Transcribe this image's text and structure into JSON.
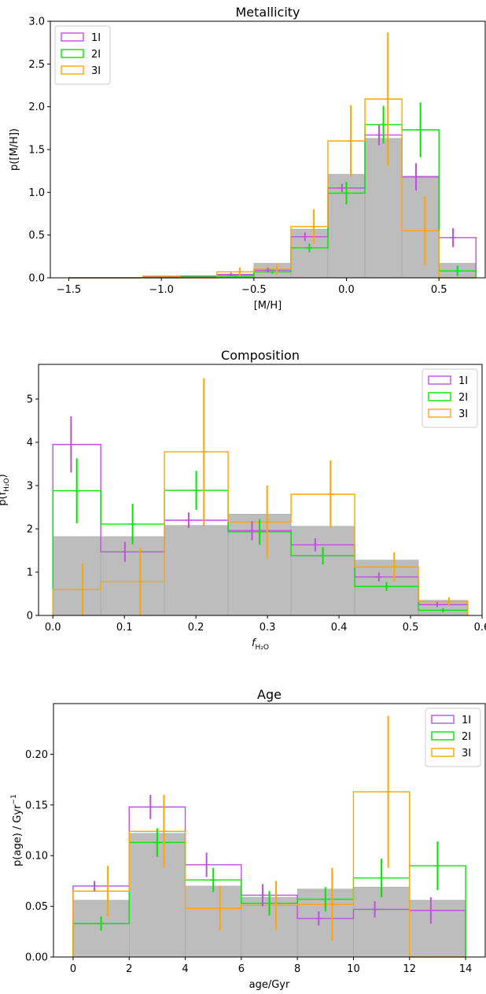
{
  "chart_data": [
    {
      "type": "histogram",
      "title": "Metallicity",
      "xlabel": "[M/H]",
      "ylabel": "p([M/H])",
      "xlim": [
        -1.6,
        0.75
      ],
      "ylim": [
        0,
        3.0
      ],
      "xticks": [
        -1.5,
        -1.0,
        -0.5,
        0.0,
        0.5
      ],
      "xtick_labels": [
        "−1.5",
        "−1.0",
        "−0.5",
        "0.0",
        "0.5"
      ],
      "yticks": [
        0.0,
        0.5,
        1.0,
        1.5,
        2.0,
        2.5,
        3.0
      ],
      "ytick_labels": [
        "0.0",
        "0.5",
        "1.0",
        "1.5",
        "2.0",
        "2.5",
        "3.0"
      ],
      "legend_position": "top-left",
      "bin_edges": [
        -1.5,
        -1.3,
        -1.1,
        -0.9,
        -0.7,
        -0.5,
        -0.3,
        -0.1,
        0.1,
        0.3,
        0.5,
        0.7
      ],
      "background": {
        "color": "#bdbdbd",
        "values": [
          0.0,
          0.0,
          0.01,
          0.01,
          0.03,
          0.17,
          0.57,
          1.21,
          1.63,
          1.19,
          0.17
        ]
      },
      "series": [
        {
          "name": "1I",
          "color": "#bf4fe0",
          "values": [
            0.0,
            0.0,
            0.01,
            0.02,
            0.04,
            0.09,
            0.48,
            1.05,
            1.67,
            1.18,
            0.47
          ],
          "err_low": [
            0,
            0,
            0,
            0,
            0.02,
            0.03,
            0.05,
            0.05,
            0.12,
            0.16,
            0.11
          ],
          "err_high": [
            0,
            0,
            0,
            0,
            0.02,
            0.03,
            0.05,
            0.05,
            0.12,
            0.16,
            0.11
          ]
        },
        {
          "name": "2I",
          "color": "#00e600",
          "values": [
            0.0,
            0.0,
            0.0,
            0.01,
            0.02,
            0.07,
            0.35,
            0.99,
            1.79,
            1.73,
            0.08
          ],
          "err_low": [
            0,
            0,
            0,
            0,
            0.01,
            0.02,
            0.05,
            0.13,
            0.22,
            0.32,
            0.06
          ],
          "err_high": [
            0,
            0,
            0,
            0,
            0.01,
            0.02,
            0.05,
            0.13,
            0.22,
            0.32,
            0.06
          ]
        },
        {
          "name": "3I",
          "color": "#ffa500",
          "values": [
            0.0,
            0.0,
            0.02,
            0.0,
            0.07,
            0.1,
            0.6,
            1.6,
            2.09,
            0.55,
            0.0
          ],
          "err_low": [
            0,
            0,
            0.01,
            0,
            0.05,
            0.06,
            0.2,
            0.42,
            0.78,
            0.4,
            0
          ],
          "err_high": [
            0,
            0,
            0.01,
            0,
            0.05,
            0.06,
            0.2,
            0.42,
            0.78,
            0.4,
            0
          ]
        }
      ]
    },
    {
      "type": "histogram",
      "title": "Composition",
      "xlabel": "f",
      "xlabel_sub": "H₂O",
      "ylabel": "p(f",
      "ylabel_sub": "H₂O",
      "ylabel_end": ")",
      "xlim": [
        -0.02,
        0.6
      ],
      "ylim": [
        0,
        5.8
      ],
      "xticks": [
        0.0,
        0.1,
        0.2,
        0.3,
        0.4,
        0.5,
        0.6
      ],
      "xtick_labels": [
        "0.0",
        "0.1",
        "0.2",
        "0.3",
        "0.4",
        "0.5",
        "0.6"
      ],
      "yticks": [
        0,
        1,
        2,
        3,
        4,
        5
      ],
      "ytick_labels": [
        "0",
        "1",
        "2",
        "3",
        "4",
        "5"
      ],
      "legend_position": "top-right",
      "bin_edges": [
        0.0,
        0.067,
        0.156,
        0.245,
        0.333,
        0.422,
        0.511,
        0.58
      ],
      "background": {
        "color": "#bdbdbd",
        "values": [
          1.82,
          1.82,
          2.08,
          2.34,
          2.06,
          1.28,
          0.35
        ]
      },
      "series": [
        {
          "name": "1I",
          "color": "#bf4fe0",
          "values": [
            3.95,
            1.47,
            2.2,
            1.96,
            1.63,
            0.89,
            0.25
          ],
          "err_low": [
            0.65,
            0.23,
            0.18,
            0.22,
            0.15,
            0.1,
            0.06
          ],
          "err_high": [
            0.65,
            0.23,
            0.18,
            0.22,
            0.15,
            0.1,
            0.06
          ]
        },
        {
          "name": "2I",
          "color": "#00e600",
          "values": [
            2.88,
            2.11,
            2.89,
            1.93,
            1.38,
            0.67,
            0.12
          ],
          "err_low": [
            0.75,
            0.47,
            0.45,
            0.3,
            0.2,
            0.1,
            0.05
          ],
          "err_high": [
            0.75,
            0.47,
            0.45,
            0.3,
            0.2,
            0.1,
            0.05
          ]
        },
        {
          "name": "3I",
          "color": "#ffa500",
          "values": [
            0.6,
            0.78,
            3.78,
            2.16,
            2.8,
            1.12,
            0.32
          ],
          "err_low": [
            0.6,
            0.78,
            1.7,
            0.84,
            0.78,
            0.34,
            0.1
          ],
          "err_high": [
            0.6,
            0.78,
            1.7,
            0.84,
            0.78,
            0.34,
            0.1
          ]
        }
      ]
    },
    {
      "type": "histogram",
      "title": "Age",
      "xlabel": "age/Gyr",
      "ylabel": "p(age) / Gyr",
      "ylabel_sup": "−1",
      "xlim": [
        -0.7,
        14.7
      ],
      "ylim": [
        0,
        0.25
      ],
      "xticks": [
        0,
        2,
        4,
        6,
        8,
        10,
        12,
        14
      ],
      "xtick_labels": [
        "0",
        "2",
        "4",
        "6",
        "8",
        "10",
        "12",
        "14"
      ],
      "yticks": [
        0.0,
        0.05,
        0.1,
        0.15,
        0.2
      ],
      "ytick_labels": [
        "0.00",
        "0.05",
        "0.10",
        "0.15",
        "0.20"
      ],
      "legend_position": "top-right",
      "bin_edges": [
        0,
        2,
        4,
        6,
        8,
        10,
        12,
        14
      ],
      "background": {
        "color": "#bdbdbd",
        "values": [
          0.056,
          0.122,
          0.07,
          0.059,
          0.067,
          0.069,
          0.056
        ]
      },
      "series": [
        {
          "name": "1I",
          "color": "#bf4fe0",
          "values": [
            0.07,
            0.148,
            0.091,
            0.061,
            0.038,
            0.047,
            0.046
          ],
          "err_low": [
            0.005,
            0.012,
            0.012,
            0.011,
            0.007,
            0.008,
            0.013
          ],
          "err_high": [
            0.005,
            0.012,
            0.012,
            0.011,
            0.007,
            0.008,
            0.013
          ]
        },
        {
          "name": "2I",
          "color": "#00e600",
          "values": [
            0.033,
            0.113,
            0.076,
            0.053,
            0.057,
            0.078,
            0.09
          ],
          "err_low": [
            0.007,
            0.014,
            0.012,
            0.012,
            0.012,
            0.019,
            0.024
          ],
          "err_high": [
            0.007,
            0.014,
            0.012,
            0.012,
            0.012,
            0.019,
            0.024
          ]
        },
        {
          "name": "3I",
          "color": "#ffa500",
          "values": [
            0.065,
            0.124,
            0.048,
            0.051,
            0.052,
            0.163,
            0.0
          ],
          "err_low": [
            0.025,
            0.036,
            0.022,
            0.024,
            0.036,
            0.075,
            0
          ],
          "err_high": [
            0.025,
            0.036,
            0.022,
            0.024,
            0.036,
            0.075,
            0
          ]
        }
      ]
    }
  ]
}
